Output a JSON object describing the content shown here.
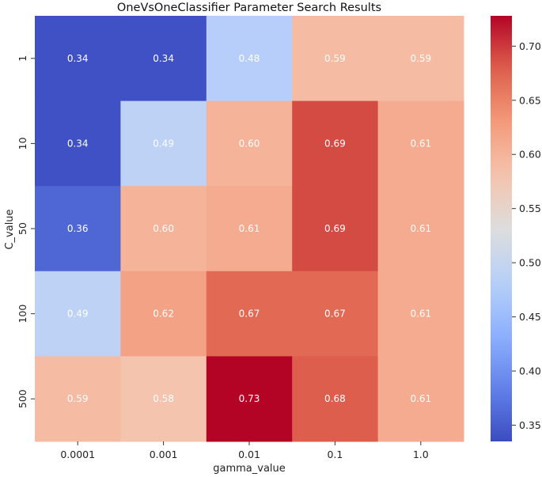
{
  "chart_data": {
    "type": "heatmap",
    "title": "OneVsOneClassifier Parameter Search Results",
    "xlabel": "gamma_value",
    "ylabel": "C_value",
    "x_categories": [
      "0.0001",
      "0.001",
      "0.01",
      "0.1",
      "1.0"
    ],
    "y_categories": [
      "1",
      "10",
      "50",
      "100",
      "500"
    ],
    "values": [
      [
        0.34,
        0.34,
        0.48,
        0.59,
        0.59
      ],
      [
        0.34,
        0.49,
        0.6,
        0.69,
        0.61
      ],
      [
        0.36,
        0.6,
        0.61,
        0.69,
        0.61
      ],
      [
        0.49,
        0.62,
        0.67,
        0.67,
        0.61
      ],
      [
        0.59,
        0.58,
        0.73,
        0.68,
        0.61
      ]
    ],
    "value_labels": [
      [
        "0.34",
        "0.34",
        "0.48",
        "0.59",
        "0.59"
      ],
      [
        "0.34",
        "0.49",
        "0.60",
        "0.69",
        "0.61"
      ],
      [
        "0.36",
        "0.60",
        "0.61",
        "0.69",
        "0.61"
      ],
      [
        "0.49",
        "0.62",
        "0.67",
        "0.67",
        "0.61"
      ],
      [
        "0.59",
        "0.58",
        "0.73",
        "0.68",
        "0.61"
      ]
    ],
    "colormap": "coolwarm",
    "vmin": 0.335,
    "vmax": 0.728,
    "colorbar_ticks": [
      0.35,
      0.4,
      0.45,
      0.5,
      0.55,
      0.6,
      0.65,
      0.7
    ],
    "colorbar_tick_labels": [
      "0.35",
      "0.40",
      "0.45",
      "0.50",
      "0.55",
      "0.60",
      "0.65",
      "0.70"
    ]
  }
}
